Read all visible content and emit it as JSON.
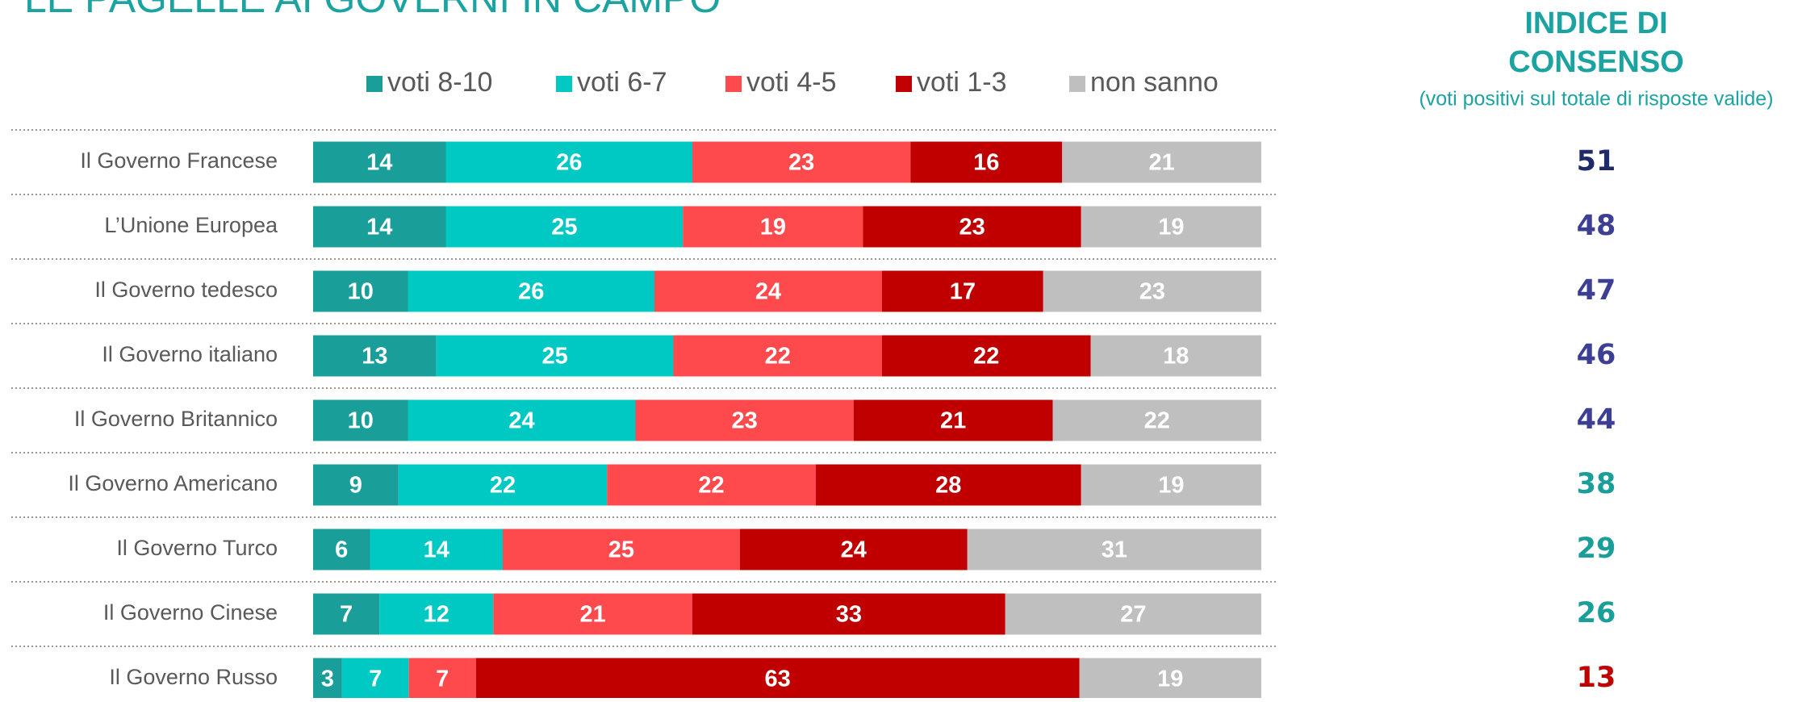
{
  "chart_data": {
    "type": "stacked-bar",
    "title": "LE PAGELLE AI GOVERNI IN CAMPO",
    "categories": [
      "Il Governo Francese",
      "L’Unione Europea",
      "Il Governo tedesco",
      "Il Governo italiano",
      "Il Governo Britannico",
      "Il Governo Americano",
      "Il Governo Turco",
      "Il Governo Cinese",
      "Il Governo Russo"
    ],
    "series": [
      {
        "name": "voti 8-10",
        "color": "#1a9e9a",
        "values": [
          14,
          14,
          10,
          13,
          10,
          9,
          6,
          7,
          3
        ]
      },
      {
        "name": "voti 6-7",
        "color": "#00c8c3",
        "values": [
          26,
          25,
          26,
          25,
          24,
          22,
          14,
          12,
          7
        ]
      },
      {
        "name": "voti 4-5",
        "color": "#ff4a4d",
        "values": [
          23,
          19,
          24,
          22,
          23,
          22,
          25,
          21,
          7
        ]
      },
      {
        "name": "voti 1-3",
        "color": "#c00000",
        "values": [
          16,
          23,
          17,
          22,
          21,
          28,
          24,
          33,
          63
        ]
      },
      {
        "name": "non sanno",
        "color": "#bfbfbf",
        "values": [
          21,
          19,
          23,
          18,
          22,
          19,
          31,
          27,
          19
        ]
      }
    ],
    "index": {
      "title": [
        "INDICE DI",
        "CONSENSO"
      ],
      "subtitle": "(voti positivi sul totale di risposte valide)",
      "values": [
        51,
        48,
        47,
        46,
        44,
        38,
        29,
        26,
        13
      ],
      "colors": [
        "#1f2a6b",
        "#3d3f94",
        "#3d3f94",
        "#3d3f94",
        "#3d3f94",
        "#1a9e9a",
        "#1a9e9a",
        "#1a9e9a",
        "#c00000"
      ]
    }
  }
}
